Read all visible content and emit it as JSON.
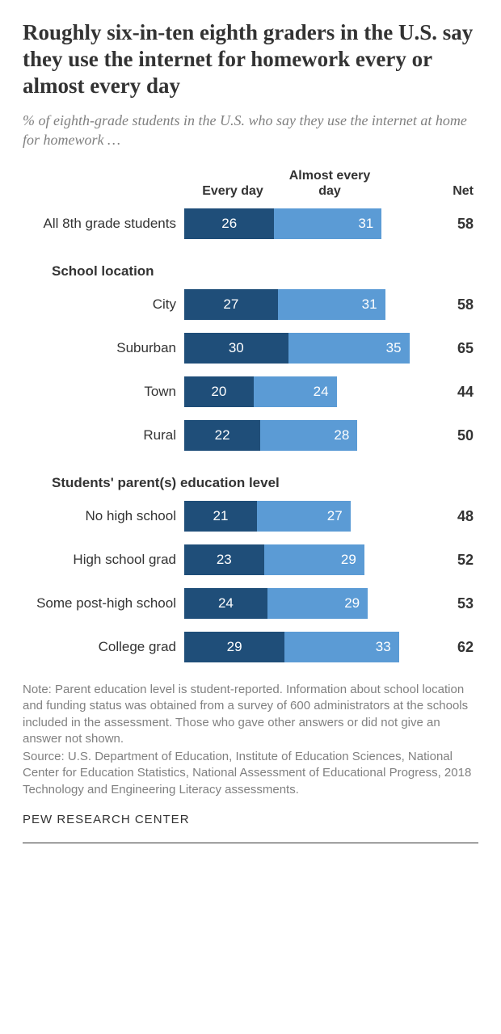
{
  "title": "Roughly six-in-ten eighth graders in the U.S. say they use the internet for homework every or almost every day",
  "subtitle": "% of eighth-grade students in the U.S. who say they use the internet at home for homework …",
  "headers": {
    "col1": "Every day",
    "col2": "Almost every day",
    "col3": "Net"
  },
  "chart": {
    "type": "stacked-bar",
    "scale_max": 70,
    "color_every_day": "#1f4e79",
    "color_almost": "#5b9bd5",
    "text_color": "#ffffff",
    "bg_color": "#ffffff"
  },
  "groups": [
    {
      "label": "",
      "rows": [
        {
          "label": "All 8th grade students",
          "every": 26,
          "almost": 31,
          "net": 58
        }
      ]
    },
    {
      "label": "School location",
      "rows": [
        {
          "label": "City",
          "every": 27,
          "almost": 31,
          "net": 58
        },
        {
          "label": "Suburban",
          "every": 30,
          "almost": 35,
          "net": 65
        },
        {
          "label": "Town",
          "every": 20,
          "almost": 24,
          "net": 44
        },
        {
          "label": "Rural",
          "every": 22,
          "almost": 28,
          "net": 50
        }
      ]
    },
    {
      "label": "Students' parent(s) education level",
      "rows": [
        {
          "label": "No high school",
          "every": 21,
          "almost": 27,
          "net": 48
        },
        {
          "label": "High school grad",
          "every": 23,
          "almost": 29,
          "net": 52
        },
        {
          "label": "Some post-high school",
          "every": 24,
          "almost": 29,
          "net": 53
        },
        {
          "label": "College grad",
          "every": 29,
          "almost": 33,
          "net": 62
        }
      ]
    }
  ],
  "note": "Note: Parent education level is student-reported. Information about school location and funding status was obtained from a survey of 600 administrators at the schools included in the assessment. Those who gave other answers or did not give an answer not shown.",
  "source": "Source: U.S. Department of Education, Institute of Education Sciences, National Center for Education Statistics, National Assessment of Educational Progress, 2018 Technology and Engineering Literacy assessments.",
  "footer": "PEW RESEARCH CENTER"
}
